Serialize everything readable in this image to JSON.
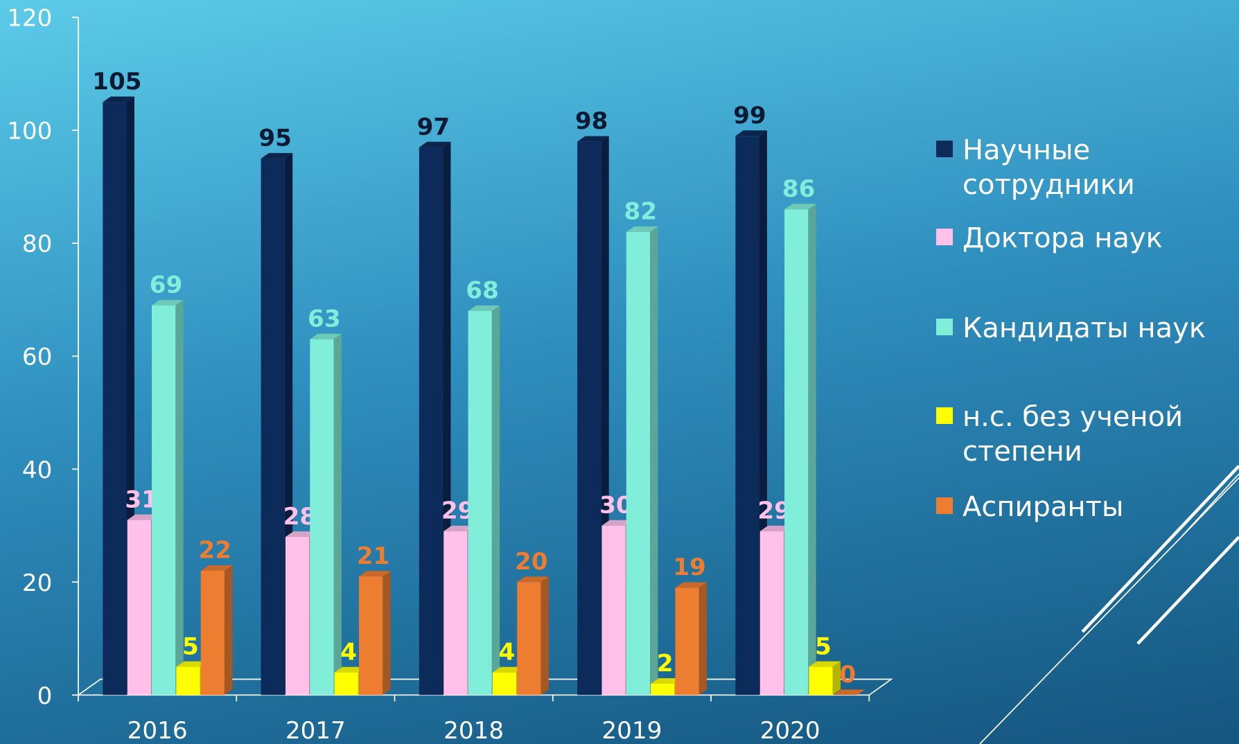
{
  "chart_data": {
    "type": "bar3d",
    "categories": [
      "2016",
      "2017",
      "2018",
      "2019",
      "2020"
    ],
    "series": [
      {
        "name": "Научные сотрудники",
        "color": "#0d2b5a",
        "label_color": "#0a1a33",
        "values": [
          105,
          95,
          97,
          98,
          99
        ]
      },
      {
        "name": "Доктора наук",
        "color": "#ffc0ea",
        "label_color": "#ffc0ea",
        "values": [
          31,
          28,
          29,
          30,
          29
        ]
      },
      {
        "name": "Кандидаты наук",
        "color": "#80eed8",
        "label_color": "#80eed8",
        "values": [
          69,
          63,
          68,
          82,
          86
        ]
      },
      {
        "name": "н.с. без ученой степени",
        "color": "#ffff00",
        "label_color": "#ffff00",
        "values": [
          5,
          4,
          4,
          2,
          5
        ]
      },
      {
        "name": "Аспиранты",
        "color": "#ed7d31",
        "label_color": "#ed7d31",
        "values": [
          22,
          21,
          20,
          19,
          0
        ]
      }
    ],
    "ylim": [
      0,
      120
    ],
    "yticks": [
      0,
      20,
      40,
      60,
      80,
      100,
      120
    ],
    "legend": "right"
  }
}
